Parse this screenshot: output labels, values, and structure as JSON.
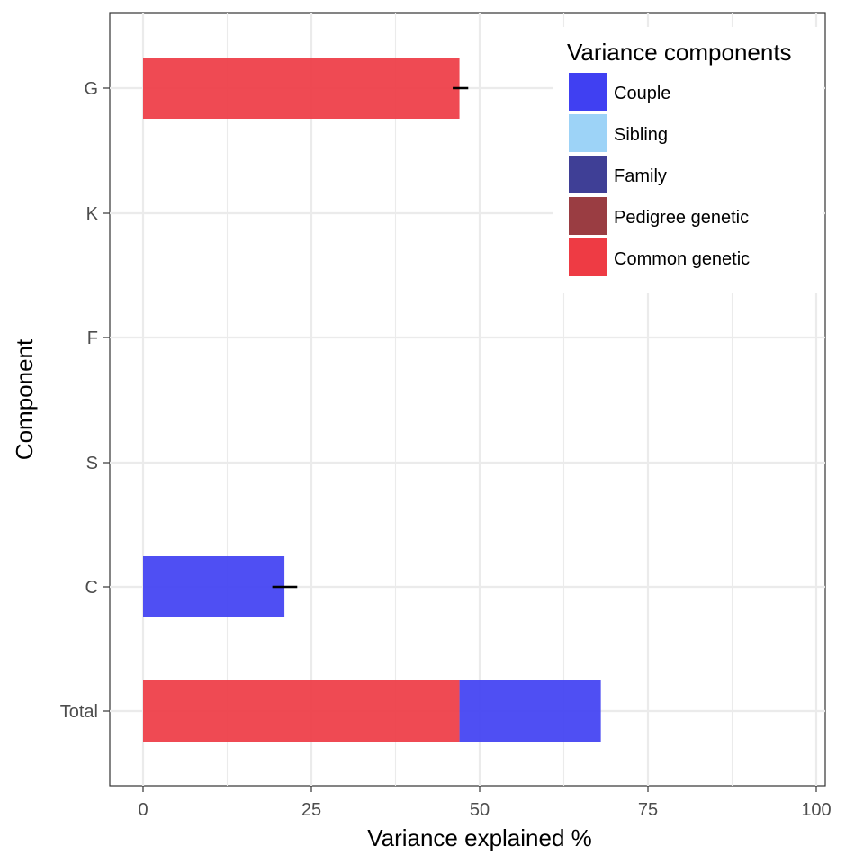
{
  "chart_data": {
    "type": "bar",
    "orientation": "horizontal",
    "stacked": true,
    "categories": [
      "G",
      "K",
      "F",
      "S",
      "C",
      "Total"
    ],
    "xlabel": "Variance explained %",
    "ylabel": "Component",
    "xlim": [
      0,
      100
    ],
    "x_ticks": [
      "0",
      "25",
      "50",
      "75",
      "100"
    ],
    "grid": true,
    "legend": {
      "title": "Variance components",
      "position": "top-right",
      "entries": [
        {
          "name": "Couple",
          "color": "#4040f2"
        },
        {
          "name": "Sibling",
          "color": "#9dd3f7"
        },
        {
          "name": "Family",
          "color": "#3f3f96"
        },
        {
          "name": "Pedigree genetic",
          "color": "#9a3d42"
        },
        {
          "name": "Common genetic",
          "color": "#ee3b44"
        }
      ]
    },
    "series": [
      {
        "name": "Common genetic",
        "color": "#ee3b44",
        "values": [
          47,
          0,
          0,
          0,
          0,
          47
        ]
      },
      {
        "name": "Couple",
        "color": "#4040f2",
        "values": [
          0,
          0,
          0,
          0,
          21,
          21
        ]
      }
    ],
    "error_bars": [
      {
        "category": "G",
        "low": 46,
        "high": 48.3
      },
      {
        "category": "C",
        "low": 19.2,
        "high": 22.9
      }
    ]
  }
}
